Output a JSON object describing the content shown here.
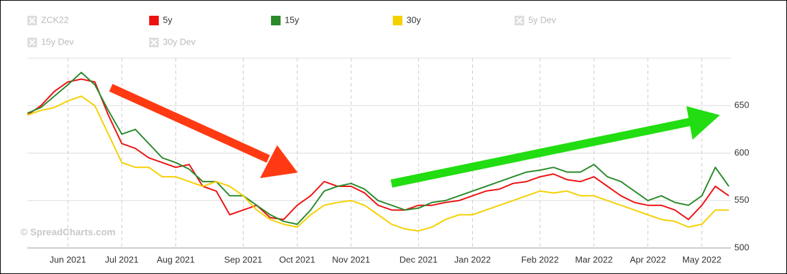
{
  "chart_data": {
    "type": "line",
    "categories": [
      null,
      null,
      null,
      "Jun 2021",
      null,
      null,
      null,
      "Jul 2021",
      null,
      null,
      null,
      "Aug 2021",
      null,
      null,
      null,
      null,
      "Sep 2021",
      null,
      null,
      null,
      "Oct 2021",
      null,
      null,
      null,
      "Nov 2021",
      null,
      null,
      null,
      null,
      "Dec 2021",
      null,
      null,
      null,
      "Jan 2022",
      null,
      null,
      null,
      null,
      "Feb 2022",
      null,
      null,
      null,
      "Mar 2022",
      null,
      null,
      null,
      "Apr 2022",
      null,
      null,
      null,
      "May 2022",
      null,
      null
    ],
    "series": [
      {
        "name": "ZCK22",
        "visible": false
      },
      {
        "name": "5y",
        "color": "#ee1111",
        "visible": true,
        "values": [
          640,
          650,
          665,
          675,
          678,
          675,
          640,
          610,
          605,
          595,
          590,
          585,
          588,
          565,
          560,
          535,
          540,
          545,
          532,
          530,
          545,
          555,
          570,
          565,
          565,
          558,
          545,
          540,
          540,
          545,
          545,
          548,
          550,
          555,
          560,
          562,
          568,
          570,
          575,
          578,
          572,
          570,
          575,
          565,
          555,
          548,
          545,
          545,
          540,
          530,
          545,
          565,
          555
        ]
      },
      {
        "name": "15y",
        "color": "#2a8a2a",
        "visible": true,
        "values": [
          642,
          648,
          660,
          672,
          685,
          672,
          645,
          620,
          625,
          610,
          595,
          590,
          583,
          570,
          570,
          555,
          555,
          545,
          535,
          528,
          525,
          540,
          560,
          565,
          568,
          562,
          550,
          545,
          540,
          542,
          548,
          550,
          555,
          560,
          565,
          570,
          575,
          580,
          582,
          585,
          580,
          580,
          588,
          575,
          570,
          560,
          550,
          555,
          548,
          545,
          555,
          585,
          565
        ]
      },
      {
        "name": "30y",
        "color": "#f5d000",
        "visible": true,
        "values": [
          640,
          645,
          648,
          655,
          660,
          650,
          620,
          590,
          585,
          585,
          575,
          575,
          570,
          565,
          570,
          565,
          555,
          540,
          530,
          525,
          522,
          535,
          545,
          548,
          550,
          545,
          535,
          525,
          520,
          518,
          522,
          530,
          535,
          535,
          540,
          545,
          550,
          555,
          560,
          558,
          560,
          555,
          555,
          550,
          545,
          540,
          535,
          530,
          528,
          522,
          525,
          540,
          540
        ]
      },
      {
        "name": "5y Dev",
        "visible": false
      },
      {
        "name": "15y Dev",
        "visible": false
      },
      {
        "name": "30y Dev",
        "visible": false
      }
    ],
    "ylim": [
      500,
      700
    ],
    "yticks": [
      500,
      550,
      600,
      650
    ],
    "grid": true,
    "watermark": "© SpreadCharts.com"
  }
}
